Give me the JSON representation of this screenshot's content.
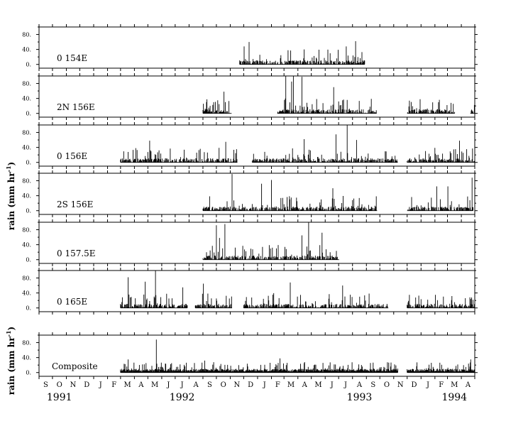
{
  "chart_data": {
    "type": "bar",
    "x_start": "1991-09-01",
    "x_end": "1994-05-01",
    "x_tick_labels": [
      "S",
      "O",
      "N",
      "D",
      "J",
      "F",
      "M",
      "A",
      "M",
      "J",
      "J",
      "A",
      "S",
      "O",
      "N",
      "D",
      "J",
      "F",
      "M",
      "A",
      "M",
      "J",
      "J",
      "A",
      "S",
      "O",
      "N",
      "D",
      "J",
      "F",
      "M",
      "A"
    ],
    "year_labels": [
      {
        "text": "1991",
        "month": "1991-10"
      },
      {
        "text": "1992",
        "month": "1992-07"
      },
      {
        "text": "1993",
        "month": "1993-08"
      },
      {
        "text": "1994",
        "month": "1994-03"
      }
    ],
    "ylim": [
      -10,
      100
    ],
    "y_ticks": [
      0,
      40,
      80
    ],
    "y_tick_labels": [
      "0.",
      "40.",
      "80."
    ],
    "ylabel_main": "rain (mm hr",
    "ylabel_sup": "-1",
    "ylabel_close": ")",
    "colors": {
      "bars": "#000000",
      "axes": "#000000",
      "background": "#ffffff"
    },
    "series": [
      {
        "name": "0 154E",
        "segments": [
          [
            "1992-11-22",
            "1993-08-28"
          ]
        ],
        "peaks": [
          [
            "1992-12-13",
            60
          ],
          [
            "1992-12-02",
            48
          ],
          [
            "1993-08-08",
            62
          ],
          [
            "1993-07-18",
            48
          ],
          [
            "1993-04-15",
            40
          ],
          [
            "1993-03-10",
            38
          ]
        ]
      },
      {
        "name": "2N 156E",
        "segments": [
          [
            "1992-09-01",
            "1992-11-04"
          ],
          [
            "1993-02-14",
            "1993-09-24"
          ],
          [
            "1993-12-01",
            "1994-03-17"
          ],
          [
            "1994-04-21",
            "1994-05-01"
          ]
        ],
        "peaks": [
          [
            "1993-03-05",
            108
          ],
          [
            "1993-03-22",
            102
          ],
          [
            "1993-04-10",
            98
          ],
          [
            "1993-06-20",
            70
          ],
          [
            "1993-03-18",
            85
          ],
          [
            "1992-10-18",
            58
          ],
          [
            "1993-12-30",
            38
          ]
        ]
      },
      {
        "name": "0 156E",
        "segments": [
          [
            "1992-03-01",
            "1992-11-17"
          ],
          [
            "1992-12-20",
            "1993-11-10"
          ],
          [
            "1993-12-01",
            "1994-05-01"
          ]
        ],
        "peaks": [
          [
            "1993-07-20",
            100
          ],
          [
            "1993-06-25",
            75
          ],
          [
            "1993-04-15",
            62
          ],
          [
            "1992-05-05",
            58
          ],
          [
            "1994-03-28",
            58
          ],
          [
            "1992-10-22",
            55
          ],
          [
            "1993-08-10",
            60
          ]
        ]
      },
      {
        "name": "2S 156E",
        "segments": [
          [
            "1992-09-01",
            "1993-09-25"
          ],
          [
            "1993-12-01",
            "1994-04-27"
          ]
        ],
        "peaks": [
          [
            "1992-11-05",
            98
          ],
          [
            "1994-04-25",
            88
          ],
          [
            "1993-02-01",
            82
          ],
          [
            "1993-01-10",
            72
          ],
          [
            "1993-06-18",
            60
          ],
          [
            "1994-03-02",
            65
          ],
          [
            "1994-02-05",
            65
          ]
        ]
      },
      {
        "name": "0 157.5E",
        "segments": [
          [
            "1992-09-01",
            "1993-07-02"
          ]
        ],
        "peaks": [
          [
            "1993-04-25",
            100
          ],
          [
            "1992-10-20",
            95
          ],
          [
            "1992-10-01",
            92
          ],
          [
            "1993-05-25",
            72
          ],
          [
            "1993-04-10",
            65
          ],
          [
            "1992-10-08",
            58
          ]
        ]
      },
      {
        "name": "0 165E",
        "segments": [
          [
            "1992-03-01",
            "1992-07-28"
          ],
          [
            "1992-08-15",
            "1992-11-05"
          ],
          [
            "1992-12-01",
            "1993-10-20"
          ],
          [
            "1993-12-01",
            "1994-05-01"
          ]
        ],
        "peaks": [
          [
            "1992-05-18",
            100
          ],
          [
            "1992-03-18",
            82
          ],
          [
            "1992-04-25",
            70
          ],
          [
            "1993-03-15",
            68
          ],
          [
            "1992-09-02",
            65
          ],
          [
            "1993-07-10",
            60
          ],
          [
            "1992-07-18",
            55
          ]
        ]
      },
      {
        "name": "Composite",
        "segments": [
          [
            "1992-03-01",
            "1993-11-10"
          ],
          [
            "1993-12-01",
            "1994-05-01"
          ]
        ],
        "peaks": [
          [
            "1992-05-20",
            88
          ],
          [
            "1992-03-18",
            35
          ],
          [
            "1993-02-20",
            38
          ],
          [
            "1994-04-22",
            35
          ],
          [
            "1992-09-05",
            32
          ]
        ]
      }
    ]
  }
}
